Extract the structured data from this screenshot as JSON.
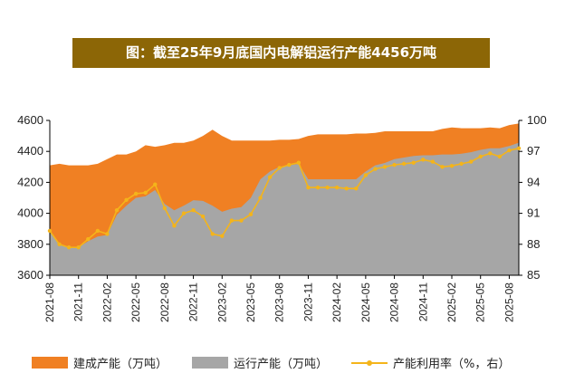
{
  "chart_data": {
    "type": "area",
    "title": "图：截至25年9月底国内电解铝运行产能4456万吨",
    "y_left": {
      "ylim": [
        3600,
        4600
      ],
      "ticks": [
        3600,
        3800,
        4000,
        4200,
        4400,
        4600
      ]
    },
    "y_right": {
      "ylim": [
        85,
        100
      ],
      "ticks": [
        85,
        88,
        91,
        94,
        97,
        100
      ]
    },
    "x_tick_labels": [
      "2021-08",
      "2021-11",
      "2022-02",
      "2022-05",
      "2022-08",
      "2022-11",
      "2023-02",
      "2023-05",
      "2023-08",
      "2023-11",
      "2024-02",
      "2024-05",
      "2024-08",
      "2024-11",
      "2025-02",
      "2025-05",
      "2025-08"
    ],
    "x": [
      "2021-08",
      "2021-09",
      "2021-10",
      "2021-11",
      "2021-12",
      "2022-01",
      "2022-02",
      "2022-03",
      "2022-04",
      "2022-05",
      "2022-06",
      "2022-07",
      "2022-08",
      "2022-09",
      "2022-10",
      "2022-11",
      "2022-12",
      "2023-01",
      "2023-02",
      "2023-03",
      "2023-04",
      "2023-05",
      "2023-06",
      "2023-07",
      "2023-08",
      "2023-09",
      "2023-10",
      "2023-11",
      "2023-12",
      "2024-01",
      "2024-02",
      "2024-03",
      "2024-04",
      "2024-05",
      "2024-06",
      "2024-07",
      "2024-08",
      "2024-09",
      "2024-10",
      "2024-11",
      "2024-12",
      "2025-01",
      "2025-02",
      "2025-03",
      "2025-04",
      "2025-05",
      "2025-06",
      "2025-07",
      "2025-08",
      "2025-09"
    ],
    "series": [
      {
        "name": "建成产能（万吨）",
        "axis": "left",
        "kind": "area",
        "color": "#f08023",
        "values": [
          4310,
          4320,
          4310,
          4310,
          4310,
          4320,
          4350,
          4380,
          4380,
          4400,
          4440,
          4430,
          4440,
          4455,
          4455,
          4470,
          4500,
          4540,
          4500,
          4470,
          4470,
          4470,
          4470,
          4470,
          4475,
          4475,
          4480,
          4500,
          4510,
          4510,
          4510,
          4510,
          4515,
          4515,
          4520,
          4530,
          4530,
          4530,
          4530,
          4530,
          4530,
          4545,
          4555,
          4550,
          4550,
          4550,
          4555,
          4550,
          4570,
          4580
        ]
      },
      {
        "name": "运行产能（万吨）",
        "axis": "left",
        "kind": "area",
        "color": "#a6a6a6",
        "values": [
          3880,
          3800,
          3780,
          3780,
          3820,
          3850,
          3860,
          3990,
          4050,
          4100,
          4110,
          4150,
          4060,
          4020,
          4050,
          4085,
          4080,
          4050,
          4010,
          4030,
          4040,
          4100,
          4220,
          4270,
          4300,
          4310,
          4320,
          4220,
          4220,
          4220,
          4220,
          4220,
          4220,
          4270,
          4310,
          4325,
          4350,
          4360,
          4370,
          4375,
          4375,
          4380,
          4380,
          4385,
          4395,
          4410,
          4420,
          4420,
          4435,
          4456
        ]
      },
      {
        "name": "产能利用率（%，右）",
        "axis": "right",
        "kind": "line",
        "color": "#f4b41a",
        "values": [
          89.3,
          88,
          87.7,
          87.7,
          88.5,
          89.3,
          89,
          91.3,
          92.3,
          92.9,
          93,
          93.8,
          91.5,
          89.8,
          91,
          91.3,
          90.7,
          89,
          88.8,
          90.3,
          90.3,
          90.9,
          92.5,
          94.5,
          95.4,
          95.7,
          95.9,
          93.5,
          93.5,
          93.5,
          93.5,
          93.4,
          93.4,
          94.7,
          95.3,
          95.5,
          95.7,
          95.8,
          95.9,
          96.2,
          96,
          95.5,
          95.6,
          95.8,
          96,
          96.5,
          96.8,
          96.5,
          97.1,
          97.3
        ]
      }
    ]
  }
}
